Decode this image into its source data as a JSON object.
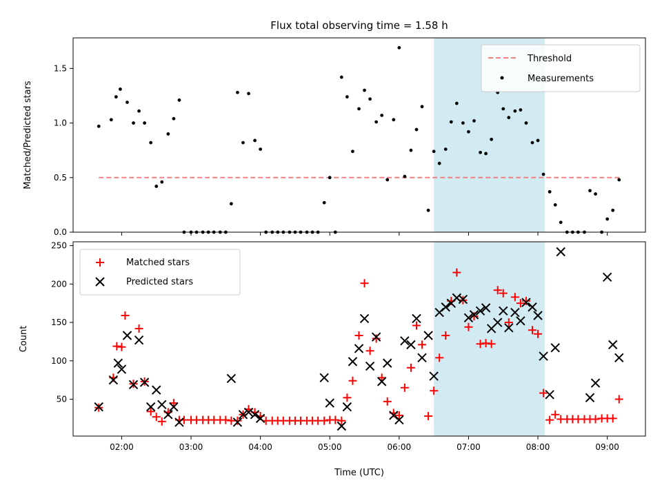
{
  "title": "Flux total observing time = 1.58 h",
  "shaded_interval": {
    "start_h": 6.5,
    "end_h": 8.1,
    "color": "#add8e6"
  },
  "chart_data": [
    {
      "type": "scatter",
      "ylabel": "Matched/Predicted stars",
      "xlim": [
        1.3,
        9.55
      ],
      "ylim": [
        0,
        1.78
      ],
      "yticks": [
        0,
        0.5,
        1.0,
        1.5
      ],
      "ytick_labels": [
        "0.0",
        "0.5",
        "1.0",
        "1.5"
      ],
      "legend": {
        "placement": "upper right",
        "entries": [
          "Threshold",
          "Measurements"
        ]
      },
      "threshold": {
        "name": "Threshold",
        "y": 0.5,
        "x_range": [
          1.67,
          9.2
        ],
        "color": "#f08080",
        "style": "dashed"
      },
      "measurements": {
        "name": "Measurements",
        "color": "#000000",
        "x": [
          1.67,
          1.85,
          1.92,
          1.98,
          2.08,
          2.17,
          2.25,
          2.33,
          2.42,
          2.5,
          2.58,
          2.67,
          2.75,
          2.83,
          2.9,
          3.0,
          3.08,
          3.17,
          3.25,
          3.33,
          3.42,
          3.5,
          3.58,
          3.67,
          3.75,
          3.83,
          3.92,
          4.0,
          4.08,
          4.17,
          4.25,
          4.33,
          4.42,
          4.5,
          4.58,
          4.67,
          4.75,
          4.83,
          4.92,
          5.0,
          5.08,
          5.17,
          5.25,
          5.33,
          5.42,
          5.5,
          5.58,
          5.67,
          5.75,
          5.83,
          5.92,
          6.0,
          6.08,
          6.17,
          6.25,
          6.33,
          6.42,
          6.5,
          6.58,
          6.67,
          6.75,
          6.83,
          6.92,
          7.0,
          7.08,
          7.17,
          7.25,
          7.33,
          7.42,
          7.5,
          7.58,
          7.67,
          7.75,
          7.83,
          7.92,
          8.0,
          8.08,
          8.17,
          8.25,
          8.33,
          8.42,
          8.5,
          8.58,
          8.67,
          8.75,
          8.83,
          8.92,
          9.0,
          9.08,
          9.17
        ],
        "y": [
          0.97,
          1.03,
          1.24,
          1.31,
          1.19,
          1.0,
          1.11,
          1.0,
          0.82,
          0.42,
          0.46,
          0.9,
          1.04,
          1.21,
          0.0,
          0.0,
          0.0,
          0.0,
          0.0,
          0.0,
          0.0,
          0.0,
          0.26,
          1.28,
          0.82,
          1.27,
          0.84,
          0.76,
          0.0,
          0.0,
          0.0,
          0.0,
          0.0,
          0.0,
          0.0,
          0.0,
          0.0,
          0.0,
          0.27,
          0.5,
          0.0,
          1.42,
          1.24,
          0.74,
          1.13,
          1.3,
          1.22,
          1.01,
          1.07,
          0.48,
          1.03,
          1.69,
          0.51,
          0.75,
          0.94,
          1.15,
          0.2,
          0.74,
          0.63,
          0.76,
          1.01,
          1.18,
          1.0,
          0.92,
          1.02,
          0.73,
          0.72,
          0.85,
          1.28,
          1.13,
          1.05,
          1.11,
          1.12,
          1.0,
          0.82,
          0.84,
          0.53,
          0.37,
          0.25,
          0.09,
          0.0,
          0.0,
          0.0,
          0.0,
          0.38,
          0.35,
          0.0,
          0.12,
          0.2,
          0.48
        ]
      }
    },
    {
      "type": "scatter",
      "ylabel": "Count",
      "xlabel": "Time (UTC)",
      "xlim": [
        1.3,
        9.55
      ],
      "ylim": [
        2,
        255
      ],
      "yticks": [
        50,
        100,
        150,
        200,
        250
      ],
      "ytick_labels": [
        "50",
        "100",
        "150",
        "200",
        "250"
      ],
      "xticks": [
        2,
        3,
        4,
        5,
        6,
        7,
        8,
        9
      ],
      "xtick_labels": [
        "02:00",
        "03:00",
        "04:00",
        "05:00",
        "06:00",
        "07:00",
        "08:00",
        "09:00"
      ],
      "legend": {
        "placement": "upper left",
        "entries": [
          "Matched stars",
          "Predicted stars"
        ]
      },
      "series": [
        {
          "name": "Matched stars",
          "marker": "plus",
          "color": "#ff0000",
          "x": [
            1.67,
            1.88,
            1.93,
            2.0,
            2.05,
            2.17,
            2.25,
            2.33,
            2.42,
            2.5,
            2.58,
            2.67,
            2.75,
            2.83,
            2.9,
            3.0,
            3.08,
            3.17,
            3.25,
            3.33,
            3.42,
            3.5,
            3.58,
            3.67,
            3.75,
            3.83,
            3.92,
            4.0,
            4.08,
            4.17,
            4.25,
            4.33,
            4.42,
            4.5,
            4.58,
            4.67,
            4.75,
            4.83,
            4.92,
            5.0,
            5.08,
            5.17,
            5.25,
            5.33,
            5.42,
            5.5,
            5.58,
            5.67,
            5.75,
            5.83,
            5.92,
            6.0,
            6.08,
            6.17,
            6.25,
            6.33,
            6.42,
            6.5,
            6.58,
            6.67,
            6.75,
            6.83,
            6.92,
            7.0,
            7.08,
            7.17,
            7.25,
            7.33,
            7.42,
            7.5,
            7.58,
            7.67,
            7.75,
            7.83,
            7.92,
            8.0,
            8.08,
            8.17,
            8.25,
            8.33,
            8.42,
            8.5,
            8.58,
            8.67,
            8.75,
            8.83,
            8.92,
            9.0,
            9.08,
            9.17
          ],
          "y": [
            39,
            78,
            119,
            118,
            159,
            70,
            142,
            73,
            34,
            27,
            21,
            33,
            45,
            23,
            23,
            23,
            23,
            23,
            23,
            23,
            23,
            23,
            22,
            22,
            30,
            37,
            33,
            28,
            22,
            22,
            22,
            22,
            22,
            22,
            22,
            22,
            22,
            22,
            22,
            23,
            23,
            22,
            52,
            74,
            133,
            201,
            113,
            129,
            78,
            47,
            32,
            29,
            65,
            91,
            146,
            121,
            28,
            61,
            104,
            133,
            178,
            215,
            179,
            144,
            158,
            122,
            123,
            122,
            192,
            188,
            150,
            183,
            175,
            178,
            140,
            135,
            58,
            23,
            30,
            24,
            24,
            24,
            24,
            24,
            24,
            24,
            25,
            25,
            25,
            50
          ]
        },
        {
          "name": "Predicted stars",
          "marker": "x",
          "color": "#000000",
          "x": [
            1.67,
            1.88,
            1.95,
            2.0,
            2.08,
            2.17,
            2.25,
            2.33,
            2.42,
            2.5,
            2.58,
            2.67,
            2.75,
            2.83,
            3.58,
            3.67,
            3.75,
            3.83,
            3.92,
            4.0,
            4.92,
            5.0,
            5.17,
            5.25,
            5.33,
            5.42,
            5.5,
            5.58,
            5.67,
            5.75,
            5.83,
            5.92,
            6.0,
            6.08,
            6.17,
            6.25,
            6.33,
            6.42,
            6.5,
            6.58,
            6.67,
            6.75,
            6.83,
            6.92,
            7.0,
            7.08,
            7.17,
            7.25,
            7.33,
            7.42,
            7.5,
            7.58,
            7.67,
            7.75,
            7.83,
            7.92,
            8.0,
            8.08,
            8.17,
            8.25,
            8.33,
            8.75,
            8.83,
            9.0,
            9.08,
            9.17
          ],
          "y": [
            40,
            75,
            97,
            89,
            133,
            69,
            127,
            72,
            40,
            62,
            43,
            30,
            40,
            20,
            77,
            20,
            30,
            33,
            30,
            25,
            78,
            45,
            15,
            40,
            99,
            116,
            155,
            93,
            131,
            73,
            97,
            29,
            23,
            126,
            121,
            155,
            104,
            133,
            80,
            163,
            170,
            175,
            182,
            180,
            156,
            160,
            165,
            169,
            142,
            150,
            165,
            143,
            163,
            152,
            176,
            170,
            159,
            106,
            56,
            117,
            242,
            52,
            71,
            209,
            121,
            104
          ]
        }
      ]
    }
  ]
}
